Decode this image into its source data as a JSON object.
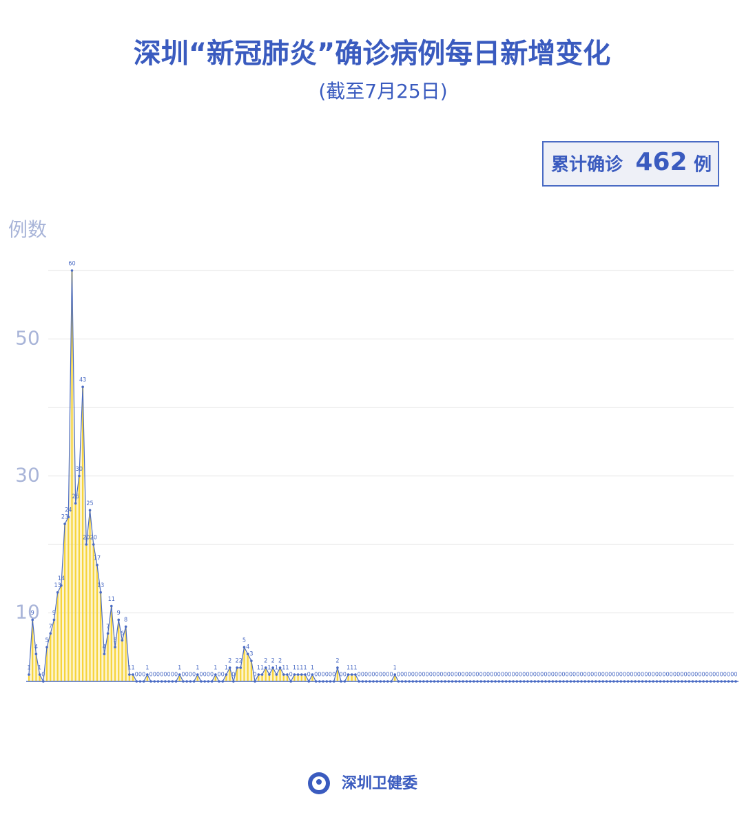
{
  "chart_data": {
    "type": "area",
    "title": "深圳“新冠肺炎”确诊病例每日新增变化",
    "subtitle": "(截至7月25日)",
    "total_label": "累计确诊",
    "total": 462,
    "total_unit": "例",
    "y_label": "例数",
    "source": "深圳卫健委",
    "line_color": "#4a6bc4",
    "fill_color": "#f6d43a",
    "ylim": [
      0,
      60
    ],
    "yticks": [
      10,
      30,
      50
    ],
    "grid_lines": [
      20,
      40,
      60
    ],
    "grid": true,
    "values": [
      1,
      9,
      4,
      1,
      0,
      5,
      7,
      9,
      13,
      14,
      23,
      24,
      60,
      26,
      30,
      43,
      20,
      25,
      20,
      17,
      13,
      4,
      7,
      11,
      5,
      9,
      6,
      8,
      1,
      1,
      0,
      0,
      0,
      1,
      0,
      0,
      0,
      0,
      0,
      0,
      0,
      0,
      1,
      0,
      0,
      0,
      0,
      1,
      0,
      0,
      0,
      0,
      1,
      0,
      0,
      1,
      2,
      0,
      2,
      2,
      5,
      4,
      3,
      0,
      1,
      1,
      2,
      1,
      2,
      1,
      2,
      1,
      1,
      0,
      1,
      1,
      1,
      1,
      0,
      1,
      0,
      0,
      0,
      0,
      0,
      0,
      2,
      0,
      0,
      1,
      1,
      1,
      0,
      0,
      0,
      0,
      0,
      0,
      0,
      0,
      0,
      0,
      1,
      0,
      0,
      0,
      0,
      0,
      0,
      0,
      0,
      0,
      0,
      0,
      0,
      0,
      0,
      0,
      0,
      0,
      0,
      0,
      0,
      0,
      0,
      0,
      0,
      0,
      0,
      0,
      0,
      0,
      0,
      0,
      0,
      0,
      0,
      0,
      0,
      0,
      0,
      0,
      0,
      0,
      0,
      0,
      0,
      0,
      0,
      0,
      0,
      0,
      0,
      0,
      0,
      0,
      0,
      0,
      0,
      0,
      0,
      0,
      0,
      0,
      0,
      0,
      0,
      0,
      0,
      0,
      0,
      0,
      0,
      0,
      0,
      0,
      0,
      0,
      0,
      0,
      0,
      0,
      0,
      0,
      0,
      0,
      0,
      0,
      0,
      0,
      0,
      0,
      0,
      0,
      0,
      0,
      0,
      0
    ]
  }
}
